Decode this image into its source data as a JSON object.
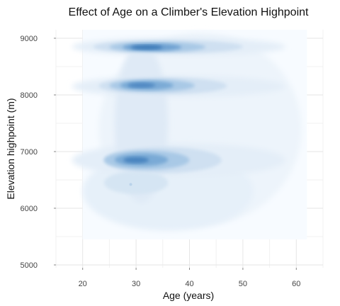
{
  "chart_data": {
    "type": "heatmap",
    "subtype": "2d-density-contour",
    "title": "Effect of Age on a Climber's Elevation Highpoint",
    "xlabel": "Age (years)",
    "ylabel": "Elevation highpoint (m)",
    "xlim": [
      15,
      65
    ],
    "ylim": [
      4950,
      9150
    ],
    "x_ticks": [
      20,
      30,
      40,
      50,
      60
    ],
    "x_tick_labels": [
      "20",
      "30",
      "40",
      "50",
      "60"
    ],
    "y_ticks": [
      5000,
      6000,
      7000,
      8000,
      9000
    ],
    "y_tick_labels": [
      "5000",
      "6000",
      "7000",
      "8000",
      "9000"
    ],
    "grid": true,
    "legend": "none",
    "colors": {
      "background": "#f7fbff",
      "low": "#e8f1fa",
      "high": "#2f6aa8",
      "grid": "#e6e6e6"
    },
    "density_peaks": [
      {
        "age": 32,
        "elevation": 8840,
        "relative_density": 1.0
      },
      {
        "age": 31,
        "elevation": 8170,
        "relative_density": 0.75
      },
      {
        "age": 30,
        "elevation": 6850,
        "relative_density": 0.8
      },
      {
        "age": 29,
        "elevation": 6420,
        "relative_density": 0.35
      }
    ],
    "density_extent": {
      "age_range": [
        22,
        60
      ],
      "elevation_range": [
        5500,
        9000
      ]
    }
  }
}
